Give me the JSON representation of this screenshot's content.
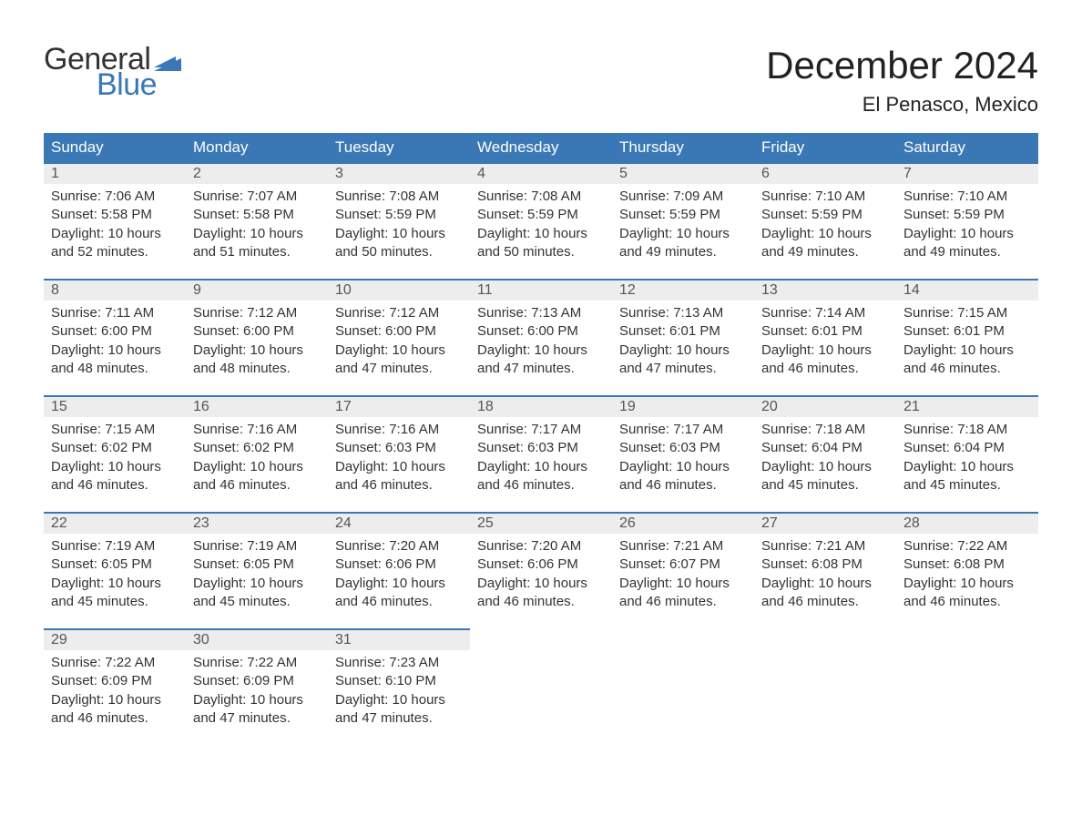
{
  "brand": {
    "word1": "General",
    "word2": "Blue",
    "word1_color": "#333333",
    "word2_color": "#3a78b5",
    "flag_color": "#3a78b5",
    "fontsize": 34
  },
  "title": {
    "month": "December 2024",
    "location": "El Penasco, Mexico",
    "month_fontsize": 42,
    "location_fontsize": 22,
    "color": "#222222"
  },
  "calendar": {
    "type": "table",
    "header_bg": "#3a78b5",
    "header_text_color": "#ffffff",
    "daynum_bg": "#ededed",
    "daynum_border_top": "#3a78b5",
    "body_text_color": "#333333",
    "cell_fontsize": 15,
    "header_fontsize": 17,
    "columns": [
      "Sunday",
      "Monday",
      "Tuesday",
      "Wednesday",
      "Thursday",
      "Friday",
      "Saturday"
    ],
    "start_weekday_index": 0,
    "days": [
      {
        "n": 1,
        "sunrise": "7:06 AM",
        "sunset": "5:58 PM",
        "daylight": "10 hours and 52 minutes."
      },
      {
        "n": 2,
        "sunrise": "7:07 AM",
        "sunset": "5:58 PM",
        "daylight": "10 hours and 51 minutes."
      },
      {
        "n": 3,
        "sunrise": "7:08 AM",
        "sunset": "5:59 PM",
        "daylight": "10 hours and 50 minutes."
      },
      {
        "n": 4,
        "sunrise": "7:08 AM",
        "sunset": "5:59 PM",
        "daylight": "10 hours and 50 minutes."
      },
      {
        "n": 5,
        "sunrise": "7:09 AM",
        "sunset": "5:59 PM",
        "daylight": "10 hours and 49 minutes."
      },
      {
        "n": 6,
        "sunrise": "7:10 AM",
        "sunset": "5:59 PM",
        "daylight": "10 hours and 49 minutes."
      },
      {
        "n": 7,
        "sunrise": "7:10 AM",
        "sunset": "5:59 PM",
        "daylight": "10 hours and 49 minutes."
      },
      {
        "n": 8,
        "sunrise": "7:11 AM",
        "sunset": "6:00 PM",
        "daylight": "10 hours and 48 minutes."
      },
      {
        "n": 9,
        "sunrise": "7:12 AM",
        "sunset": "6:00 PM",
        "daylight": "10 hours and 48 minutes."
      },
      {
        "n": 10,
        "sunrise": "7:12 AM",
        "sunset": "6:00 PM",
        "daylight": "10 hours and 47 minutes."
      },
      {
        "n": 11,
        "sunrise": "7:13 AM",
        "sunset": "6:00 PM",
        "daylight": "10 hours and 47 minutes."
      },
      {
        "n": 12,
        "sunrise": "7:13 AM",
        "sunset": "6:01 PM",
        "daylight": "10 hours and 47 minutes."
      },
      {
        "n": 13,
        "sunrise": "7:14 AM",
        "sunset": "6:01 PM",
        "daylight": "10 hours and 46 minutes."
      },
      {
        "n": 14,
        "sunrise": "7:15 AM",
        "sunset": "6:01 PM",
        "daylight": "10 hours and 46 minutes."
      },
      {
        "n": 15,
        "sunrise": "7:15 AM",
        "sunset": "6:02 PM",
        "daylight": "10 hours and 46 minutes."
      },
      {
        "n": 16,
        "sunrise": "7:16 AM",
        "sunset": "6:02 PM",
        "daylight": "10 hours and 46 minutes."
      },
      {
        "n": 17,
        "sunrise": "7:16 AM",
        "sunset": "6:03 PM",
        "daylight": "10 hours and 46 minutes."
      },
      {
        "n": 18,
        "sunrise": "7:17 AM",
        "sunset": "6:03 PM",
        "daylight": "10 hours and 46 minutes."
      },
      {
        "n": 19,
        "sunrise": "7:17 AM",
        "sunset": "6:03 PM",
        "daylight": "10 hours and 46 minutes."
      },
      {
        "n": 20,
        "sunrise": "7:18 AM",
        "sunset": "6:04 PM",
        "daylight": "10 hours and 45 minutes."
      },
      {
        "n": 21,
        "sunrise": "7:18 AM",
        "sunset": "6:04 PM",
        "daylight": "10 hours and 45 minutes."
      },
      {
        "n": 22,
        "sunrise": "7:19 AM",
        "sunset": "6:05 PM",
        "daylight": "10 hours and 45 minutes."
      },
      {
        "n": 23,
        "sunrise": "7:19 AM",
        "sunset": "6:05 PM",
        "daylight": "10 hours and 45 minutes."
      },
      {
        "n": 24,
        "sunrise": "7:20 AM",
        "sunset": "6:06 PM",
        "daylight": "10 hours and 46 minutes."
      },
      {
        "n": 25,
        "sunrise": "7:20 AM",
        "sunset": "6:06 PM",
        "daylight": "10 hours and 46 minutes."
      },
      {
        "n": 26,
        "sunrise": "7:21 AM",
        "sunset": "6:07 PM",
        "daylight": "10 hours and 46 minutes."
      },
      {
        "n": 27,
        "sunrise": "7:21 AM",
        "sunset": "6:08 PM",
        "daylight": "10 hours and 46 minutes."
      },
      {
        "n": 28,
        "sunrise": "7:22 AM",
        "sunset": "6:08 PM",
        "daylight": "10 hours and 46 minutes."
      },
      {
        "n": 29,
        "sunrise": "7:22 AM",
        "sunset": "6:09 PM",
        "daylight": "10 hours and 46 minutes."
      },
      {
        "n": 30,
        "sunrise": "7:22 AM",
        "sunset": "6:09 PM",
        "daylight": "10 hours and 47 minutes."
      },
      {
        "n": 31,
        "sunrise": "7:23 AM",
        "sunset": "6:10 PM",
        "daylight": "10 hours and 47 minutes."
      }
    ],
    "labels": {
      "sunrise_prefix": "Sunrise: ",
      "sunset_prefix": "Sunset: ",
      "daylight_prefix": "Daylight: "
    }
  }
}
